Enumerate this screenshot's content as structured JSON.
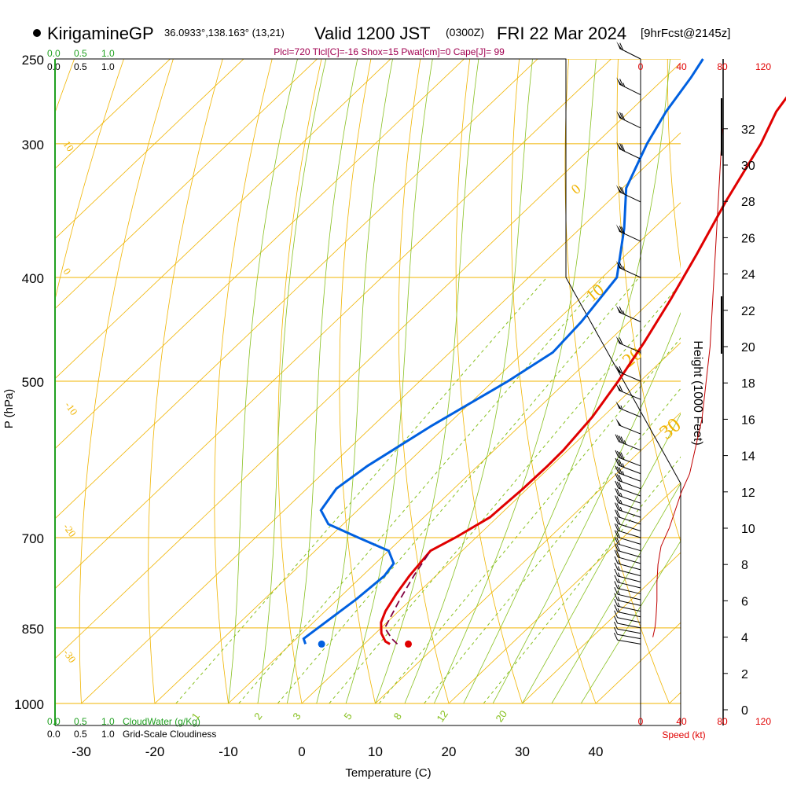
{
  "header": {
    "station": "KirigamineGP",
    "coords": "36.0933°,138.163° (13,21)",
    "valid": "Valid 1200 JST",
    "utc": "(0300Z)",
    "date": "FRI 22 Mar 2024",
    "fcst": "[9hrFcst@2145z]",
    "indices": "Plcl=720 Tlcl[C]=-16 Shox=15 Pwat[cm]=0 Cape[J]= 99"
  },
  "labels": {
    "pressure_axis": "P (hPa)",
    "temp_axis": "Temperature (C)",
    "height_axis": "Height (1000 Feet)",
    "speed_axis": "Speed (kt)",
    "cloudwater_label": "CloudWater (g/Kg)",
    "cloudiness_label": "Grid-Scale Cloudiness",
    "cw_ticks": [
      "0.0",
      "0.5",
      "1.0"
    ],
    "cloud_ticks": [
      "0.0",
      "0.5",
      "1.0"
    ],
    "speed_ticks": [
      "0",
      "40",
      "80",
      "120"
    ]
  },
  "colors": {
    "temperature": "#e00000",
    "dewpoint": "#0060e0",
    "isobar": "#f0b400",
    "isotherm": "#f0b400",
    "dry_adiabat": "#f0b400",
    "moist_adiabat": "#88c020",
    "mixing_ratio": "#88c020",
    "parcel": "#800040",
    "index_text": "#a00050",
    "cloud_green": "#20a020"
  },
  "chart_data": {
    "type": "line",
    "title": "Skew-T log-P diagram",
    "xlabel": "Temperature (C)",
    "ylabel": "P (hPa)",
    "xlim": [
      -34,
      44
    ],
    "pressure_range": [
      1000,
      250
    ],
    "x_ticks": [
      -30,
      -20,
      -10,
      0,
      10,
      20,
      30,
      40
    ],
    "pressure_ticks": [
      250,
      300,
      400,
      500,
      700,
      850,
      1000
    ],
    "height_ticks_kft": [
      0,
      2,
      4,
      6,
      8,
      10,
      12,
      14,
      16,
      18,
      20,
      22,
      24,
      26,
      28,
      30,
      32
    ],
    "dry_adiabat_labels": [
      "10",
      "0",
      "-10",
      "-20",
      "-30"
    ],
    "moist_adiabat_labels": [
      "0",
      "10",
      "20",
      "30"
    ],
    "mixing_ratio_labels": [
      "1",
      "2",
      "3",
      "5",
      "8",
      "12",
      "20"
    ],
    "series": [
      {
        "name": "Temperature",
        "pressure": [
          880,
          875,
          860,
          840,
          820,
          790,
          760,
          720,
          700,
          670,
          630,
          600,
          580,
          540,
          500,
          460,
          420,
          380,
          340,
          300,
          280,
          260,
          250
        ],
        "values": [
          3.5,
          2.5,
          0.8,
          -0.8,
          -1.8,
          -2.8,
          -3.6,
          -4.3,
          -2.8,
          -1.0,
          -0.6,
          -0.5,
          -0.6,
          -1.4,
          -3.0,
          -5.0,
          -7.5,
          -10.5,
          -14.0,
          -17.5,
          -20.0,
          -21.5,
          -22.0
        ]
      },
      {
        "name": "Dewpoint",
        "pressure": [
          880,
          870,
          800,
          760,
          740,
          720,
          700,
          680,
          660,
          630,
          600,
          550,
          500,
          470,
          440,
          400,
          360,
          330,
          300,
          280,
          260,
          250
        ],
        "values": [
          -8.0,
          -9.0,
          -7.5,
          -7.0,
          -7.5,
          -10.0,
          -16.0,
          -22.0,
          -25.0,
          -26.0,
          -25.0,
          -22.0,
          -18.0,
          -16.0,
          -16.5,
          -18.0,
          -24.0,
          -29.5,
          -33.0,
          -35.0,
          -36.5,
          -37.5
        ]
      },
      {
        "name": "Parcel",
        "pressure": [
          880,
          870,
          850,
          800,
          760,
          720
        ],
        "values": [
          4.5,
          3.0,
          0.5,
          -1.5,
          -3.0,
          -4.3
        ]
      }
    ],
    "surface": {
      "pressure": 880,
      "temperature": 6.0,
      "dewpoint": -5.8
    },
    "wind_profile": {
      "units": "kt",
      "pressure": [
        880,
        870,
        860,
        850,
        840,
        830,
        820,
        810,
        800,
        790,
        780,
        770,
        760,
        750,
        740,
        730,
        720,
        710,
        700,
        690,
        680,
        670,
        660,
        650,
        640,
        630,
        620,
        610,
        600,
        580,
        560,
        540,
        520,
        500,
        470,
        440,
        400,
        370,
        340,
        310,
        290,
        270,
        250
      ],
      "speed": [
        10,
        10,
        12,
        14,
        14,
        15,
        15,
        16,
        16,
        17,
        17,
        18,
        18,
        19,
        20,
        20,
        21,
        21,
        22,
        23,
        24,
        25,
        26,
        28,
        30,
        32,
        35,
        38,
        40,
        45,
        50,
        55,
        60,
        62,
        64,
        66,
        68,
        70,
        72,
        72,
        70,
        66,
        60
      ]
    },
    "speed_profile": {
      "units": "kt",
      "height_kft": [
        4.0,
        4.5,
        5.0,
        6.0,
        7.0,
        8.0,
        9.0,
        10.0,
        11.0,
        12.0,
        13.0,
        14.0,
        15.0,
        16.0,
        17.0,
        18.0,
        19.0,
        20.0,
        22.0,
        24.0,
        26.0,
        28.0,
        30.0,
        32.0
      ],
      "speed": [
        12,
        14,
        15,
        16,
        16,
        17,
        20,
        28,
        34,
        40,
        48,
        52,
        56,
        60,
        62,
        64,
        66,
        68,
        70,
        72,
        74,
        76,
        78,
        80
      ]
    }
  }
}
